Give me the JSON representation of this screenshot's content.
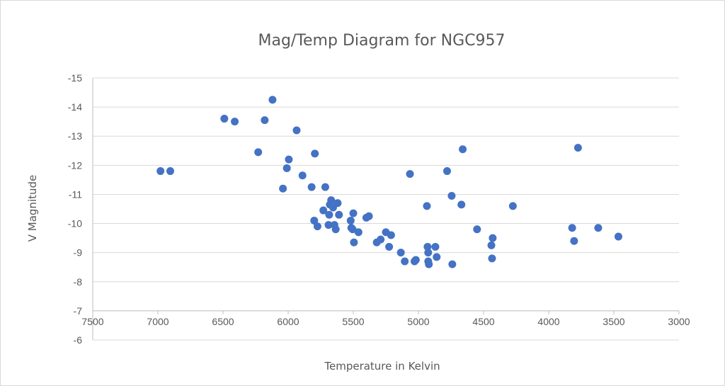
{
  "chart_data": {
    "type": "scatter",
    "title": "Mag/Temp Diagram for NGC957",
    "xlabel": "Temperature in Kelvin",
    "ylabel": "V Magnitude",
    "xlim": [
      7500,
      3000
    ],
    "ylim": [
      -6,
      -15
    ],
    "x_reversed": true,
    "y_reversed": true,
    "x_ticks": [
      7500,
      7000,
      6500,
      6000,
      5500,
      5000,
      4500,
      4000,
      3500,
      3000
    ],
    "y_ticks": [
      -15,
      -14,
      -13,
      -12,
      -11,
      -10,
      -9,
      -8,
      -7,
      -6
    ],
    "x_axis_crosses_y": -7,
    "gridlines": "horizontal",
    "legend": "none",
    "colors": {
      "marker": "#4472c4",
      "grid": "#d9d9d9",
      "text": "#595959"
    },
    "points": [
      [
        6980,
        -11.8
      ],
      [
        6905,
        -11.8
      ],
      [
        6490,
        -13.6
      ],
      [
        6410,
        -13.5
      ],
      [
        6230,
        -12.45
      ],
      [
        6180,
        -13.55
      ],
      [
        6120,
        -14.25
      ],
      [
        6040,
        -11.2
      ],
      [
        6010,
        -11.9
      ],
      [
        5995,
        -12.2
      ],
      [
        5935,
        -13.2
      ],
      [
        5890,
        -11.65
      ],
      [
        5820,
        -11.25
      ],
      [
        5800,
        -10.1
      ],
      [
        5795,
        -12.4
      ],
      [
        5775,
        -9.9
      ],
      [
        5730,
        -10.45
      ],
      [
        5715,
        -11.25
      ],
      [
        5690,
        -9.95
      ],
      [
        5685,
        -10.3
      ],
      [
        5680,
        -10.65
      ],
      [
        5670,
        -10.8
      ],
      [
        5655,
        -10.55
      ],
      [
        5645,
        -9.95
      ],
      [
        5635,
        -9.8
      ],
      [
        5620,
        -10.7
      ],
      [
        5610,
        -10.3
      ],
      [
        5520,
        -10.1
      ],
      [
        5515,
        -9.85
      ],
      [
        5505,
        -9.8
      ],
      [
        5500,
        -10.35
      ],
      [
        5495,
        -9.35
      ],
      [
        5460,
        -9.7
      ],
      [
        5400,
        -10.2
      ],
      [
        5380,
        -10.25
      ],
      [
        5320,
        -9.35
      ],
      [
        5290,
        -9.45
      ],
      [
        5250,
        -9.7
      ],
      [
        5225,
        -9.2
      ],
      [
        5210,
        -9.6
      ],
      [
        5135,
        -9.0
      ],
      [
        5105,
        -8.7
      ],
      [
        5065,
        -11.7
      ],
      [
        5030,
        -8.7
      ],
      [
        5020,
        -8.75
      ],
      [
        4935,
        -10.6
      ],
      [
        4930,
        -9.2
      ],
      [
        4925,
        -9.0
      ],
      [
        4925,
        -8.7
      ],
      [
        4920,
        -8.6
      ],
      [
        4870,
        -9.2
      ],
      [
        4860,
        -8.85
      ],
      [
        4780,
        -11.8
      ],
      [
        4745,
        -10.95
      ],
      [
        4740,
        -8.6
      ],
      [
        4670,
        -10.65
      ],
      [
        4660,
        -12.55
      ],
      [
        4550,
        -9.8
      ],
      [
        4440,
        -9.25
      ],
      [
        4435,
        -8.8
      ],
      [
        4430,
        -9.5
      ],
      [
        4275,
        -10.6
      ],
      [
        3820,
        -9.85
      ],
      [
        3805,
        -9.4
      ],
      [
        3775,
        -12.6
      ],
      [
        3620,
        -9.85
      ],
      [
        3465,
        -9.55
      ]
    ]
  }
}
